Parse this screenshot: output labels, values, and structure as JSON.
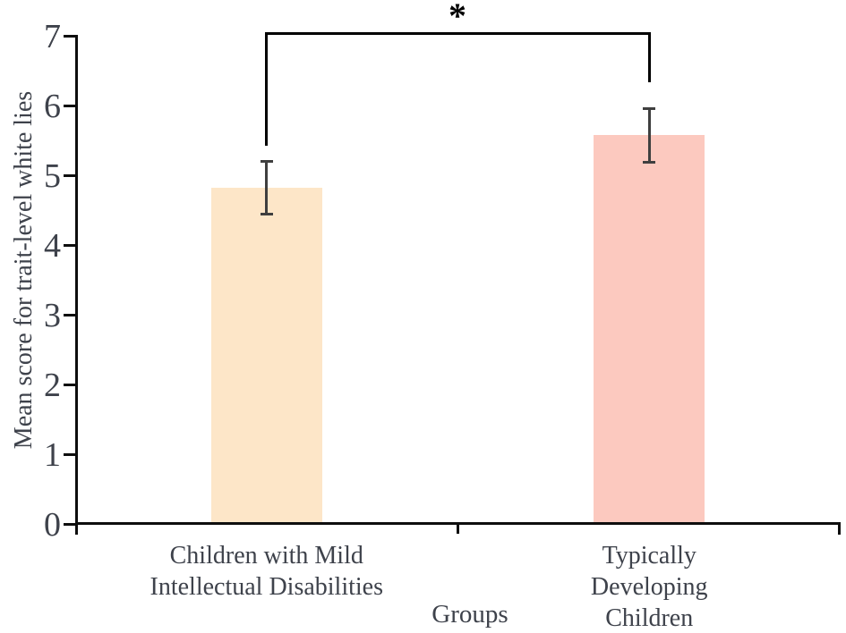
{
  "chart_data": {
    "type": "bar",
    "title": "",
    "categories": [
      "Children with Mild\nIntellectual Disabilities",
      "Typically Developing Children"
    ],
    "values": [
      4.82,
      5.58
    ],
    "error_bars": {
      "lower": [
        4.45,
        5.19
      ],
      "upper": [
        5.21,
        5.96
      ]
    },
    "bar_colors": [
      "#fde6c8",
      "#fcc9bf"
    ],
    "xlabel": "Groups",
    "ylabel": "Mean score for trait-level white lies",
    "ylim": [
      0,
      7
    ],
    "yticks": [
      0,
      1,
      2,
      3,
      4,
      5,
      6,
      7
    ],
    "grid": false,
    "legend_position": "none",
    "annotation": {
      "type": "significance-bracket",
      "label": "*",
      "connects": [
        0,
        1
      ]
    }
  },
  "colors": {
    "axis": "#0e0e0e",
    "text": "#3e424b",
    "error_bar": "#3f3f3f",
    "background": "#ffffff"
  }
}
